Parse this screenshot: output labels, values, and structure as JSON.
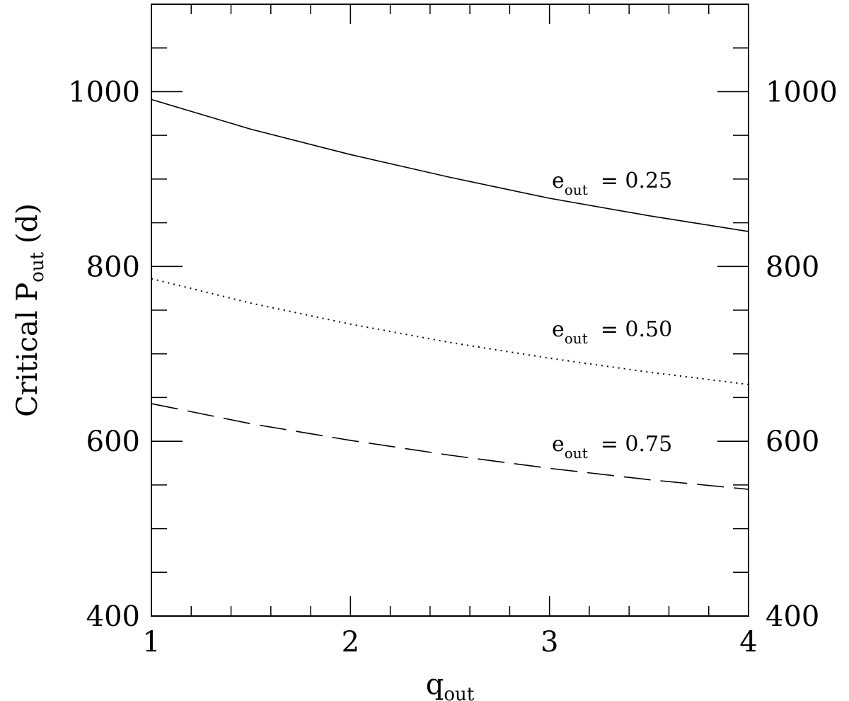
{
  "chart_data": {
    "type": "line",
    "xlabel": "q",
    "xlabel_sub": "out",
    "ylabel_prefix": "Critical P",
    "ylabel_sub": "out",
    "ylabel_suffix": "(d)",
    "xlim": [
      1,
      4
    ],
    "ylim": [
      400,
      1100
    ],
    "x_ticks": [
      {
        "value": 1,
        "label": "1"
      },
      {
        "value": 2,
        "label": "2"
      },
      {
        "value": 3,
        "label": "3"
      },
      {
        "value": 4,
        "label": "4"
      }
    ],
    "y_ticks": [
      {
        "value": 400,
        "label": "400"
      },
      {
        "value": 600,
        "label": "600"
      },
      {
        "value": 800,
        "label": "800"
      },
      {
        "value": 1000,
        "label": "1000"
      }
    ],
    "x_minor_step": 0.2,
    "y_minor_step": 50,
    "right_axis_labels": true,
    "grid": false,
    "series": [
      {
        "style": "solid",
        "x": [
          1.0,
          1.5,
          2.0,
          2.5,
          3.0,
          3.5,
          4.0
        ],
        "y": [
          991,
          957,
          928,
          902,
          878,
          858,
          840
        ],
        "annotation": {
          "main": "e",
          "sub": "out",
          "value": "=  0.25",
          "x": 2.0,
          "y": 885
        }
      },
      {
        "style": "dotted",
        "x": [
          1.0,
          1.5,
          2.0,
          2.5,
          3.0,
          3.5,
          4.0
        ],
        "y": [
          786,
          758,
          734,
          713,
          695,
          679,
          665
        ],
        "annotation": {
          "main": "e",
          "sub": "out",
          "value": "=  0.50",
          "x": 2.0,
          "y": 715
        }
      },
      {
        "style": "dashed",
        "x": [
          1.0,
          1.5,
          2.0,
          2.5,
          3.0,
          3.5,
          4.0
        ],
        "y": [
          643,
          620,
          601,
          584,
          569,
          556,
          545
        ],
        "annotation": {
          "main": "e",
          "sub": "out",
          "value": "=  0.75",
          "x": 2.0,
          "y": 585
        }
      }
    ]
  }
}
